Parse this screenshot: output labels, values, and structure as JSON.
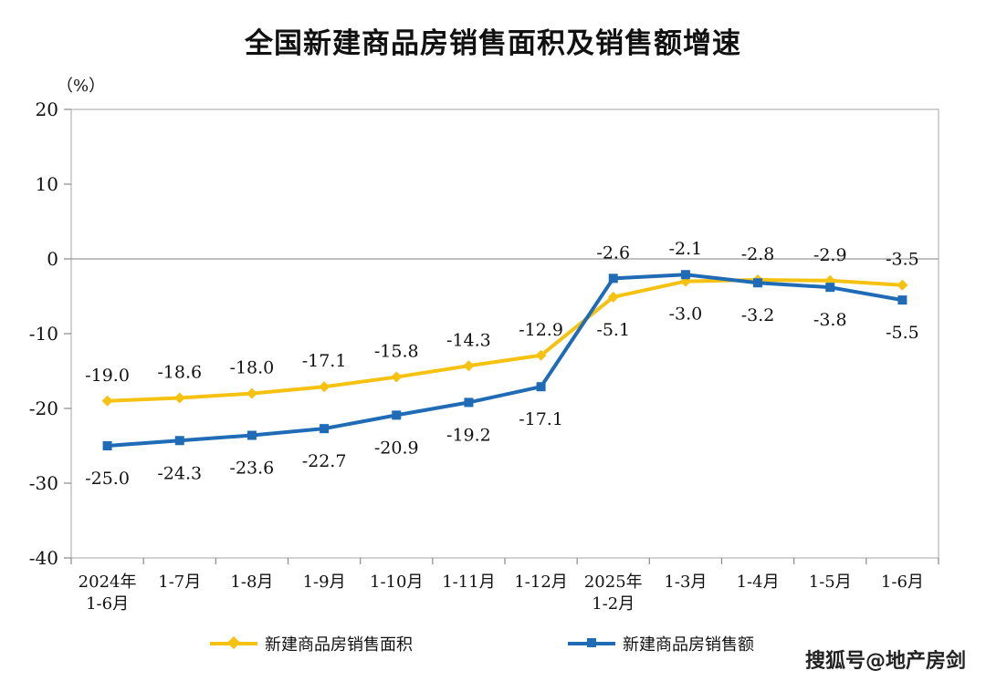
{
  "title": "全国新建商品房销售面积及销售额增速",
  "unit_label": "（%）",
  "watermark": "搜狐号@地产房剑",
  "colors": {
    "area": "#F5C211",
    "amount": "#1F6BB6",
    "axis": "#888888"
  },
  "chart_data": {
    "type": "line",
    "title": "全国新建商品房销售面积及销售额增速",
    "ylabel": "（%）",
    "ylim": [
      -40,
      20
    ],
    "yticks": [
      20,
      10,
      0,
      -10,
      -20,
      -30,
      -40
    ],
    "categories": [
      [
        "2024年",
        "1-6月"
      ],
      [
        "1-7月"
      ],
      [
        "1-8月"
      ],
      [
        "1-9月"
      ],
      [
        "1-10月"
      ],
      [
        "1-11月"
      ],
      [
        "1-12月"
      ],
      [
        "2025年",
        "1-2月"
      ],
      [
        "1-3月"
      ],
      [
        "1-4月"
      ],
      [
        "1-5月"
      ],
      [
        "1-6月"
      ]
    ],
    "series": [
      {
        "name": "新建商品房销售面积",
        "marker": "diamond",
        "values": [
          -19.0,
          -18.6,
          -18.0,
          -17.1,
          -15.8,
          -14.3,
          -12.9,
          -5.1,
          -3.0,
          -2.8,
          -2.9,
          -3.5
        ],
        "labels": [
          "-19.0",
          "-18.6",
          "-18.0",
          "-17.1",
          "-15.8",
          "-14.3",
          "-12.9",
          "-5.1",
          "-3.0",
          "-2.8",
          "-2.9",
          "-3.5"
        ]
      },
      {
        "name": "新建商品房销售额",
        "marker": "square",
        "values": [
          -25.0,
          -24.3,
          -23.6,
          -22.7,
          -20.9,
          -19.2,
          -17.1,
          -2.6,
          -2.1,
          -3.2,
          -3.8,
          -5.5
        ],
        "labels": [
          "-25.0",
          "-24.3",
          "-23.6",
          "-22.7",
          "-20.9",
          "-19.2",
          "-17.1",
          "-2.6",
          "-2.1",
          "-3.2",
          "-3.8",
          "-5.5"
        ]
      }
    ],
    "grid": false,
    "legend": "bottom"
  }
}
